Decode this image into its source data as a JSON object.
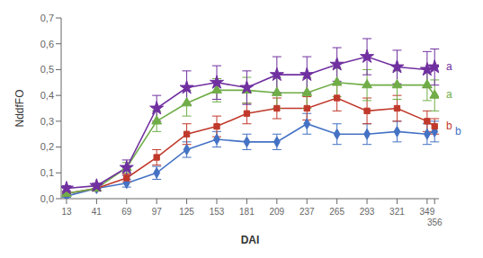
{
  "chart_data": {
    "type": "line",
    "xlabel": "DAI",
    "ylabel": "NddfFO",
    "x": [
      13,
      41,
      69,
      97,
      125,
      153,
      181,
      209,
      237,
      265,
      293,
      321,
      349,
      356
    ],
    "xlim": [
      8,
      360
    ],
    "xticks": [
      13,
      41,
      69,
      97,
      125,
      153,
      181,
      209,
      237,
      265,
      293,
      321,
      349,
      356
    ],
    "ylim": [
      0.0,
      0.7
    ],
    "yticks": [
      {
        "value": 0.0,
        "label": "0,0"
      },
      {
        "value": 0.1,
        "label": "0,1"
      },
      {
        "value": 0.2,
        "label": "0,2"
      },
      {
        "value": 0.3,
        "label": "0,3"
      },
      {
        "value": 0.4,
        "label": "0,4"
      },
      {
        "value": 0.5,
        "label": "0,5"
      },
      {
        "value": 0.6,
        "label": "0,6"
      },
      {
        "value": 0.7,
        "label": "0,7"
      }
    ],
    "grid": false,
    "series": [
      {
        "color": "#4472C4",
        "marker": "diamond",
        "values": [
          0.01,
          0.04,
          0.06,
          0.1,
          0.19,
          0.23,
          0.22,
          0.22,
          0.29,
          0.25,
          0.25,
          0.26,
          0.25,
          0.26
        ],
        "yerr": [
          0.005,
          0.01,
          0.015,
          0.025,
          0.03,
          0.03,
          0.03,
          0.03,
          0.04,
          0.04,
          0.04,
          0.04,
          0.04,
          0.04
        ]
      },
      {
        "color": "#C0392B",
        "marker": "square",
        "values": [
          0.02,
          0.04,
          0.08,
          0.16,
          0.25,
          0.28,
          0.33,
          0.35,
          0.35,
          0.39,
          0.34,
          0.35,
          0.3,
          0.28
        ],
        "yerr": [
          0.005,
          0.01,
          0.015,
          0.03,
          0.04,
          0.04,
          0.04,
          0.04,
          0.045,
          0.05,
          0.05,
          0.05,
          0.04,
          0.03
        ]
      },
      {
        "color": "#70AD47",
        "marker": "triangle",
        "values": [
          0.02,
          0.04,
          0.12,
          0.3,
          0.37,
          0.42,
          0.42,
          0.41,
          0.41,
          0.45,
          0.44,
          0.44,
          0.44,
          0.4
        ],
        "yerr": [
          0.005,
          0.01,
          0.02,
          0.04,
          0.05,
          0.045,
          0.05,
          0.06,
          0.06,
          0.055,
          0.06,
          0.055,
          0.06,
          0.06
        ]
      },
      {
        "color": "#7030A0",
        "marker": "star",
        "values": [
          0.04,
          0.05,
          0.12,
          0.35,
          0.43,
          0.45,
          0.43,
          0.48,
          0.48,
          0.52,
          0.55,
          0.51,
          0.5,
          0.51
        ],
        "yerr": [
          0.01,
          0.01,
          0.03,
          0.05,
          0.065,
          0.065,
          0.065,
          0.07,
          0.07,
          0.065,
          0.07,
          0.065,
          0.07,
          0.07
        ]
      }
    ],
    "annotations": [
      {
        "text": "a",
        "y": 0.51,
        "color": "#7030A0"
      },
      {
        "text": "a",
        "y": 0.4,
        "color": "#70AD47"
      },
      {
        "text": "b",
        "y": 0.28,
        "color": "#C0392B"
      },
      {
        "text": "b",
        "y": 0.26,
        "color": "#4472C4"
      }
    ]
  }
}
